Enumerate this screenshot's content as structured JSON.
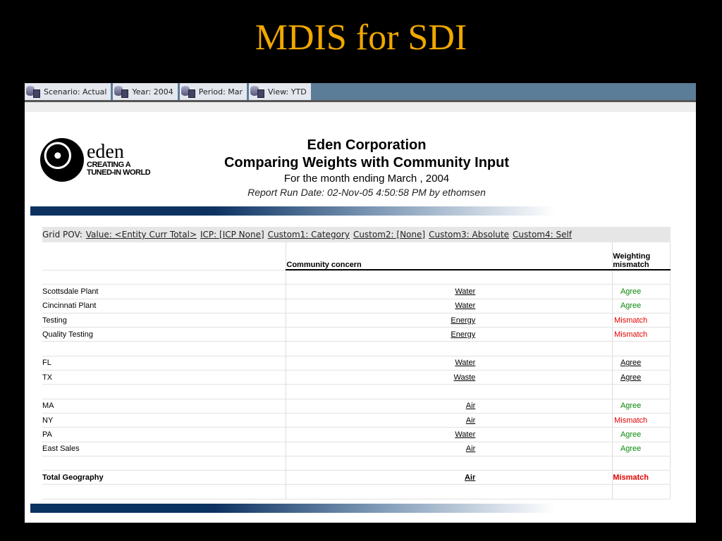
{
  "slide_title": "MDIS for SDI",
  "pov": [
    {
      "label": "Scenario: Actual"
    },
    {
      "label": "Year: 2004"
    },
    {
      "label": "Period: Mar"
    },
    {
      "label": "View: YTD"
    }
  ],
  "logo": {
    "name": "eden",
    "tagline1": "CREATING A",
    "tagline2": "TUNED-IN WORLD"
  },
  "report": {
    "company": "Eden Corporation",
    "title": "Comparing Weights with Community Input",
    "period": "For the month ending March , 2004",
    "run": "Report Run Date: 02-Nov-05 4:50:58 PM by ethomsen"
  },
  "grid_pov": {
    "label": "Grid POV:",
    "items": [
      "Value: <Entity Curr Total>",
      "ICP: [ICP None]",
      "Custom1: Category",
      "Custom2: [None]",
      "Custom3: Absolute",
      "Custom4: Self"
    ]
  },
  "columns": [
    "Community concern",
    "Weighting mismatch"
  ],
  "colors": {
    "agree": "#0a8a0a",
    "mismatch": "#e00000",
    "title": "#f0a800"
  },
  "rows": [
    {
      "name": "",
      "concern": "",
      "match": ""
    },
    {
      "name": "Scottsdale Plant",
      "concern": "Water",
      "match": "Agree",
      "style": "green"
    },
    {
      "name": "Cincinnati Plant",
      "concern": "Water",
      "match": "Agree",
      "style": "green"
    },
    {
      "name": "Testing",
      "concern": "Energy",
      "match": "Mismatch",
      "style": "red"
    },
    {
      "name": "Quality Testing",
      "concern": "Energy",
      "match": "Mismatch",
      "style": "red"
    },
    {
      "name": "",
      "concern": "",
      "match": ""
    },
    {
      "name": "FL",
      "concern": "Water",
      "match": "Agree",
      "style": "link"
    },
    {
      "name": "TX",
      "concern": "Waste",
      "match": "Agree",
      "style": "link"
    },
    {
      "name": "",
      "concern": "",
      "match": ""
    },
    {
      "name": "MA",
      "concern": "Air",
      "match": "Agree",
      "style": "green"
    },
    {
      "name": "NY",
      "concern": "Air",
      "match": "Mismatch",
      "style": "red"
    },
    {
      "name": "PA",
      "concern": "Water",
      "match": "Agree",
      "style": "green"
    },
    {
      "name": "East Sales",
      "concern": "Air",
      "match": "Agree",
      "style": "green"
    },
    {
      "name": "",
      "concern": "",
      "match": ""
    },
    {
      "name": "Total Geography",
      "concern": "Air",
      "match": "Mismatch",
      "style": "red",
      "total": true
    },
    {
      "name": "",
      "concern": "",
      "match": ""
    }
  ]
}
